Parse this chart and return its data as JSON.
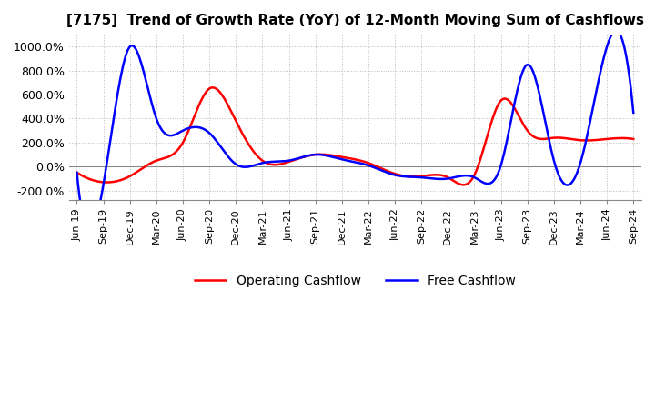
{
  "title": "[7175]  Trend of Growth Rate (YoY) of 12-Month Moving Sum of Cashflows",
  "title_fontsize": 11,
  "ylim": [
    -280,
    1100
  ],
  "yticks": [
    -200,
    0,
    200,
    400,
    600,
    800,
    1000
  ],
  "ytick_labels": [
    "-200.0%",
    "0.0%",
    "200.0%",
    "400.0%",
    "600.0%",
    "800.0%",
    "1000.0%"
  ],
  "background_color": "#ffffff",
  "grid_color": "#bbbbbb",
  "operating_color": "#ff0000",
  "free_color": "#0000ff",
  "legend_labels": [
    "Operating Cashflow",
    "Free Cashflow"
  ],
  "x_labels": [
    "Jun-19",
    "Sep-19",
    "Dec-19",
    "Mar-20",
    "Jun-20",
    "Sep-20",
    "Dec-20",
    "Mar-21",
    "Jun-21",
    "Sep-21",
    "Dec-21",
    "Mar-22",
    "Jun-22",
    "Sep-22",
    "Dec-22",
    "Mar-23",
    "Jun-23",
    "Sep-23",
    "Dec-23",
    "Mar-24",
    "Jun-24",
    "Sep-24"
  ],
  "operating_cashflow": [
    -50,
    -130,
    -80,
    50,
    200,
    650,
    380,
    50,
    40,
    100,
    80,
    30,
    -60,
    -80,
    -90,
    -70,
    550,
    300,
    240,
    220,
    230,
    230
  ],
  "free_cashflow": [
    -50,
    -150,
    1000,
    400,
    300,
    280,
    20,
    30,
    50,
    100,
    60,
    10,
    -70,
    -90,
    -100,
    -90,
    10,
    850,
    50,
    30,
    1000,
    450
  ]
}
